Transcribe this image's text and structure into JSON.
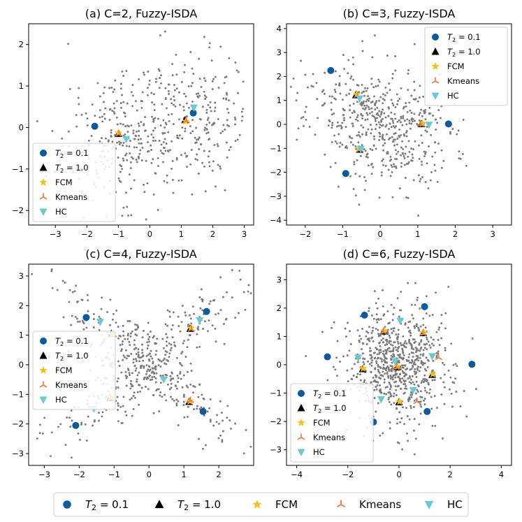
{
  "figure": {
    "legend_labels": [
      "T2 = 0.1",
      "T2 = 1.0",
      "FCM",
      "Kmeans",
      "HC"
    ],
    "legend_keys": [
      "t01",
      "t10",
      "fcm",
      "km",
      "hc"
    ],
    "colors": {
      "t01": "#0a5a9c",
      "t10": "#000000",
      "fcm": "#f5bf1c",
      "km": "#f0763f",
      "hc": "#6cc9d0",
      "scatter": "#7a7a7a"
    }
  },
  "chart_data": [
    {
      "type": "scatter",
      "title": "(a) C=2, Fuzzy-ISDA",
      "xlim": [
        -3.85,
        3.3
      ],
      "ylim": [
        -2.35,
        2.5
      ],
      "xticks": [
        -3,
        -2,
        -1,
        0,
        1,
        2,
        3
      ],
      "yticks": [
        -2,
        -1,
        0,
        1,
        2
      ],
      "legend_position": "lower-left",
      "background": {
        "n": 520,
        "seed": 11,
        "model": "two_clusters",
        "centers": [
          [
            -0.9,
            -0.2
          ],
          [
            1.3,
            0.25
          ]
        ],
        "spread": [
          0.95,
          0.85
        ]
      },
      "series": {
        "t01": [
          [
            -1.75,
            0.03
          ],
          [
            1.38,
            0.35
          ]
        ],
        "t10": [
          [
            -1.0,
            -0.15
          ],
          [
            1.12,
            0.18
          ]
        ],
        "fcm": [
          [
            -1.0,
            -0.13
          ],
          [
            1.14,
            0.15
          ]
        ],
        "km": [
          [
            -0.98,
            -0.16
          ],
          [
            1.16,
            0.16
          ]
        ],
        "hc": [
          [
            -0.75,
            -0.28
          ],
          [
            1.4,
            0.48
          ]
        ]
      }
    },
    {
      "type": "scatter",
      "title": "(b) C=3, Fuzzy-ISDA",
      "xlim": [
        -2.5,
        3.5
      ],
      "ylim": [
        -4.2,
        4.2
      ],
      "xticks": [
        -2,
        -1,
        0,
        1,
        2,
        3
      ],
      "yticks": [
        -4,
        -3,
        -2,
        -1,
        0,
        1,
        2,
        3,
        4
      ],
      "legend_position": "upper-right",
      "background": {
        "n": 520,
        "seed": 23,
        "model": "one_cluster",
        "centers": [
          [
            -0.1,
            0.0
          ]
        ],
        "spread": [
          0.95,
          1.2
        ]
      },
      "series": {
        "t01": [
          [
            -1.32,
            2.25
          ],
          [
            -0.92,
            -2.05
          ],
          [
            1.82,
            0.02
          ]
        ],
        "t10": [
          [
            -0.65,
            1.22
          ],
          [
            -0.55,
            -1.05
          ],
          [
            1.1,
            0.02
          ]
        ],
        "fcm": [
          [
            -0.63,
            1.25
          ],
          [
            -0.57,
            -1.02
          ],
          [
            1.12,
            0.04
          ]
        ],
        "km": [
          [
            -0.61,
            1.2
          ],
          [
            -0.54,
            -1.06
          ],
          [
            1.08,
            0.0
          ]
        ],
        "hc": [
          [
            -0.55,
            1.08
          ],
          [
            -0.52,
            -1.02
          ],
          [
            1.3,
            -0.02
          ]
        ]
      }
    },
    {
      "type": "scatter",
      "title": "(c) C=4, Fuzzy-ISDA",
      "xlim": [
        -3.45,
        3.0
      ],
      "ylim": [
        -3.4,
        3.4
      ],
      "xticks": [
        -3,
        -2,
        -1,
        0,
        1,
        2
      ],
      "yticks": [
        -3,
        -2,
        -1,
        0,
        1,
        2,
        3
      ],
      "legend_position": "center-left",
      "background": {
        "n": 560,
        "seed": 37,
        "model": "x_shape",
        "centers": [],
        "spread": [
          0.45,
          2.6
        ]
      },
      "series": {
        "t01": [
          [
            -1.8,
            1.6
          ],
          [
            1.65,
            1.8
          ],
          [
            -2.1,
            -2.05
          ],
          [
            1.55,
            -1.58
          ]
        ],
        "t10": [
          [
            -1.08,
            1.05
          ],
          [
            1.18,
            1.22
          ],
          [
            -1.12,
            -1.12
          ],
          [
            1.15,
            -1.25
          ]
        ],
        "fcm": [
          [
            -1.06,
            1.03
          ],
          [
            1.2,
            1.24
          ],
          [
            -1.1,
            -1.1
          ],
          [
            1.17,
            -1.23
          ]
        ],
        "km": [
          [
            -1.02,
            1.01
          ],
          [
            1.22,
            1.2
          ],
          [
            -1.08,
            -1.14
          ],
          [
            1.19,
            -1.21
          ]
        ],
        "hc": [
          [
            -1.4,
            1.45
          ],
          [
            1.45,
            1.5
          ],
          [
            -1.58,
            -1.48
          ],
          [
            0.42,
            -0.5
          ]
        ]
      }
    },
    {
      "type": "scatter",
      "title": "(d) C=6, Fuzzy-ISDA",
      "xlim": [
        -4.4,
        4.4
      ],
      "ylim": [
        -3.55,
        3.55
      ],
      "xticks": [
        -4,
        -2,
        0,
        2,
        4
      ],
      "yticks": [
        -3,
        -2,
        -1,
        0,
        1,
        2,
        3
      ],
      "legend_position": "lower-left",
      "background": {
        "n": 760,
        "seed": 53,
        "model": "one_cluster",
        "centers": [
          [
            0.0,
            0.0
          ]
        ],
        "spread": [
          1.05,
          1.05
        ]
      },
      "series": {
        "t01": [
          [
            -2.8,
            0.28
          ],
          [
            -1.35,
            1.75
          ],
          [
            1.0,
            2.05
          ],
          [
            2.85,
            0.02
          ],
          [
            1.1,
            -1.65
          ],
          [
            -1.0,
            -2.02
          ]
        ],
        "t10": [
          [
            -0.6,
            1.18
          ],
          [
            0.95,
            1.12
          ],
          [
            -1.42,
            -0.15
          ],
          [
            1.3,
            -0.35
          ],
          [
            0.0,
            -1.32
          ],
          [
            -0.08,
            -0.08
          ]
        ],
        "fcm": [
          [
            -0.58,
            1.2
          ],
          [
            0.97,
            1.14
          ],
          [
            -1.4,
            -0.13
          ],
          [
            1.32,
            -0.33
          ],
          [
            0.02,
            -1.3
          ],
          [
            -0.06,
            -0.06
          ]
        ],
        "km": [
          [
            -0.62,
            1.16
          ],
          [
            0.93,
            1.1
          ],
          [
            -1.2,
            -1.25
          ],
          [
            1.55,
            0.25
          ],
          [
            0.7,
            -1.3
          ],
          [
            -0.1,
            -0.1
          ]
        ],
        "hc": [
          [
            0.05,
            1.55
          ],
          [
            -1.6,
            0.25
          ],
          [
            1.3,
            0.3
          ],
          [
            0.55,
            -0.9
          ],
          [
            -0.7,
            -1.22
          ],
          [
            -0.15,
            0.12
          ]
        ]
      }
    }
  ]
}
